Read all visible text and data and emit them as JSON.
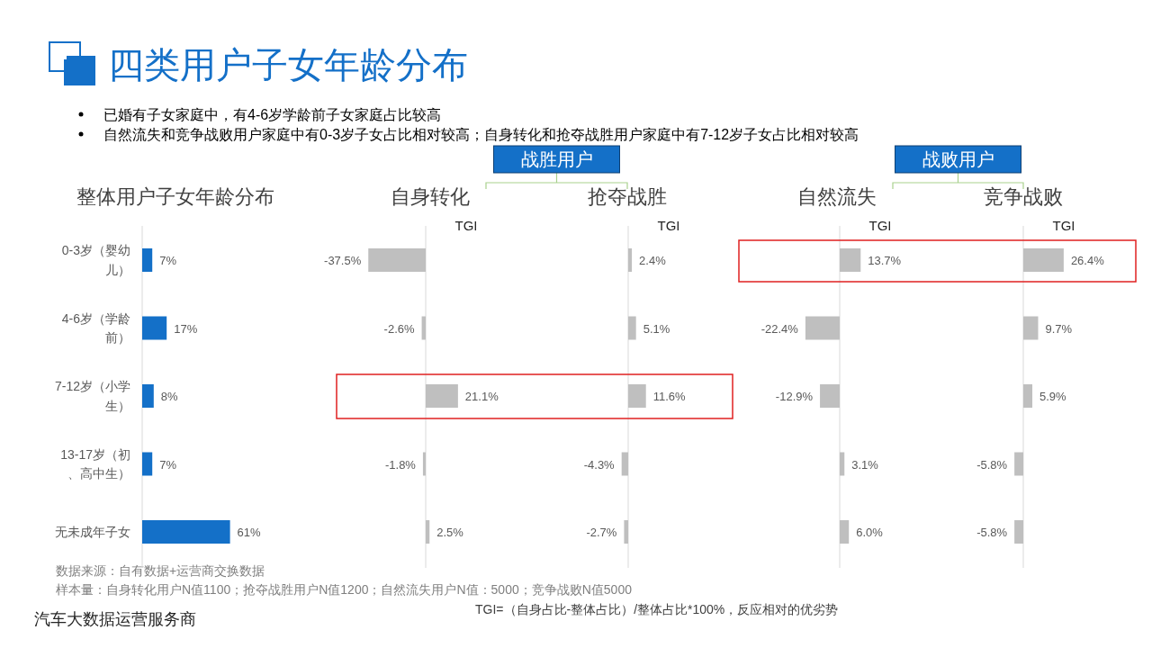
{
  "chart_data": [
    {
      "type": "other",
      "title": "四类用户子女年龄分布",
      "annotations": [
        "已婚有子女家庭中，有4-6岁学龄前子女家庭占比较高",
        "自然流失和竞争战败用户家庭中有0-3岁子女占比相对较高；自身转化和抢夺战胜用户家庭中有7-12岁子女占比相对较高",
        "数据来源：自有数据+运营商交换数据",
        "样本量：自身转化用户N值1100；抢夺战胜用户N值1200；自然流失用户N值：5000；竞争战败N值5000",
        "TGI=（自身占比-整体占比）/整体占比*100%，反应相对的优劣势",
        "汽车大数据运营服务商"
      ]
    },
    {
      "type": "bar",
      "orientation": "horizontal",
      "title": "整体用户子女年龄分布",
      "categories": [
        "0-3岁（婴幼儿）",
        "4-6岁（学龄前）",
        "7-12岁（小学生）",
        "13-17岁（初、高中生）",
        "无未成年子女"
      ],
      "values": [
        7,
        17,
        8,
        7,
        61
      ],
      "color": "#1470c8",
      "value_labels": [
        "7%",
        "17%",
        "8%",
        "7%",
        "61%"
      ]
    },
    {
      "type": "bar",
      "orientation": "horizontal",
      "title": "自身转化",
      "xlabel": "TGI",
      "annotations": [
        "战胜用户"
      ],
      "categories": [
        null,
        null,
        null,
        null,
        null
      ],
      "values": [
        -37.5,
        -2.6,
        21.1,
        -1.8,
        2.5
      ],
      "color": "#bfbfbf",
      "value_labels": [
        "-37.5%",
        "-2.6%",
        "21.1%",
        "-1.8%",
        "2.5%"
      ]
    },
    {
      "type": "bar",
      "orientation": "horizontal",
      "title": "抢夺战胜",
      "xlabel": "TGI",
      "categories": [
        null,
        null,
        null,
        null,
        null
      ],
      "values": [
        2.4,
        5.1,
        11.6,
        -4.3,
        -2.7
      ],
      "color": "#bfbfbf",
      "value_labels": [
        "2.4%",
        "5.1%",
        "11.6%",
        "-4.3%",
        "-2.7%"
      ]
    },
    {
      "type": "bar",
      "orientation": "horizontal",
      "title": "自然流失",
      "xlabel": "TGI",
      "annotations": [
        "战败用户"
      ],
      "categories": [
        null,
        null,
        null,
        null,
        null
      ],
      "values": [
        13.7,
        -22.4,
        -12.9,
        3.1,
        6.0
      ],
      "color": "#bfbfbf",
      "value_labels": [
        "13.7%",
        "-22.4%",
        "-12.9%",
        "3.1%",
        "6.0%"
      ]
    },
    {
      "type": "bar",
      "orientation": "horizontal",
      "title": "竞争战败",
      "xlabel": "TGI",
      "categories": [
        null,
        null,
        null,
        null,
        null
      ],
      "values": [
        26.4,
        9.7,
        5.9,
        -5.8,
        -5.8
      ],
      "color": "#bfbfbf",
      "value_labels": [
        "26.4%",
        "9.7%",
        "5.9%",
        "-5.8%",
        "-5.8%"
      ]
    }
  ]
}
